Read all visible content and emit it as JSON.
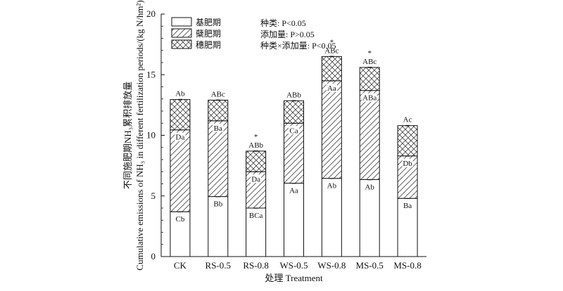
{
  "chart_data": {
    "type": "bar",
    "stacked": true,
    "xlabel": "处理 Treatment",
    "ylabel_cn": "不同施肥期NH₃累积排放量",
    "ylabel_en": "Cumulative emissions of NH₃ in different fertilization periods/(kg N/hm²)",
    "ylim": [
      0,
      20
    ],
    "yticks": [
      "0",
      "5",
      "10",
      "15",
      "20"
    ],
    "categories": [
      "CK",
      "RS-0.5",
      "RS-0.8",
      "WS-0.5",
      "WS-0.8",
      "MS-0.5",
      "MS-0.8"
    ],
    "series": [
      {
        "name": "基肥期",
        "pattern": "none",
        "values": [
          3.7,
          4.95,
          4.0,
          6.05,
          6.45,
          6.35,
          4.8
        ],
        "labels": [
          "Cb",
          "Bb",
          "BCa",
          "Aa",
          "Ab",
          "Ab",
          "Ba"
        ]
      },
      {
        "name": "蘖肥期",
        "pattern": "hatch",
        "values": [
          6.75,
          6.25,
          3.0,
          4.95,
          8.05,
          7.35,
          3.5
        ],
        "labels": [
          "Da",
          "Ba",
          "Da",
          "Ca",
          "Aa",
          "ABa",
          "Db"
        ]
      },
      {
        "name": "穗肥期",
        "pattern": "crosshatch",
        "values": [
          2.5,
          1.7,
          1.7,
          1.85,
          2.0,
          1.9,
          2.5
        ],
        "labels": [
          "",
          "",
          "",
          "",
          "",
          "",
          ""
        ]
      }
    ],
    "top_labels": [
      "Ab",
      "ABc",
      "ABb",
      "ABb",
      "ABc",
      "ABc",
      "Ac"
    ],
    "significance_marks": [
      "",
      "",
      "*",
      "",
      "*",
      "*",
      ""
    ],
    "legend_position": "top-left",
    "stats": [
      "种类: P<0.05",
      "添加量: P>0.05",
      "种类×添加量: P<0.05"
    ]
  }
}
